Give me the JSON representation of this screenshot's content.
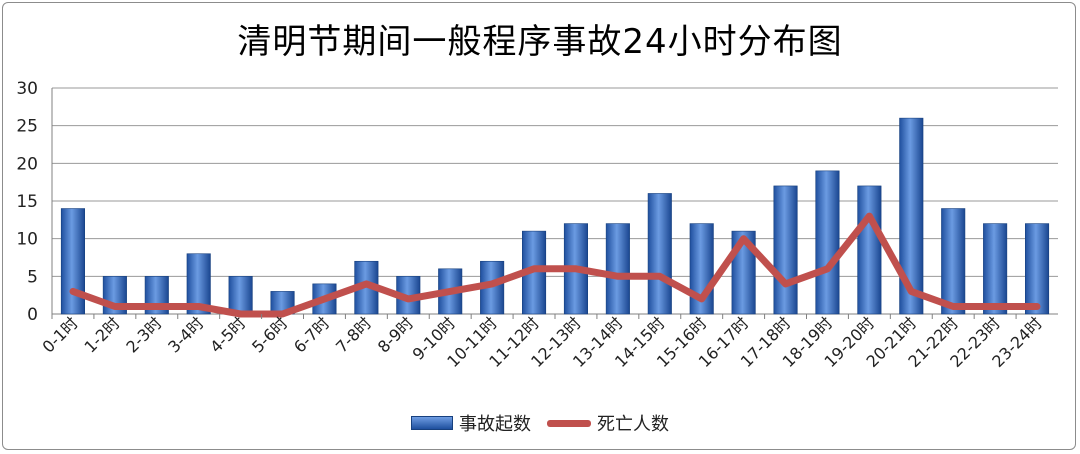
{
  "chart_data": {
    "type": "bar",
    "title": "清明节期间一般程序事故24小时分布图",
    "categories": [
      "0-1时",
      "1-2时",
      "2-3时",
      "3-4时",
      "4-5时",
      "5-6时",
      "6-7时",
      "7-8时",
      "8-9时",
      "9-10时",
      "10-11时",
      "11-12时",
      "12-13时",
      "13-14时",
      "14-15时",
      "15-16时",
      "16-17时",
      "17-18时",
      "18-19时",
      "19-20时",
      "20-21时",
      "21-22时",
      "22-23时",
      "23-24时"
    ],
    "series": [
      {
        "name": "事故起数",
        "type": "bar",
        "color": "#2e63b6",
        "values": [
          14,
          5,
          5,
          8,
          5,
          3,
          4,
          7,
          5,
          6,
          7,
          11,
          12,
          12,
          16,
          12,
          11,
          17,
          19,
          17,
          26,
          14,
          12,
          12
        ]
      },
      {
        "name": "死亡人数",
        "type": "line",
        "color": "#c0504d",
        "values": [
          3,
          1,
          1,
          1,
          0,
          0,
          2,
          4,
          2,
          3,
          4,
          6,
          6,
          5,
          5,
          2,
          10,
          4,
          6,
          13,
          3,
          1,
          1,
          1
        ]
      }
    ],
    "ylim": [
      0,
      30
    ],
    "yticks": [
      0,
      5,
      10,
      15,
      20,
      25,
      30
    ],
    "grid": true,
    "legend": "bottom"
  }
}
